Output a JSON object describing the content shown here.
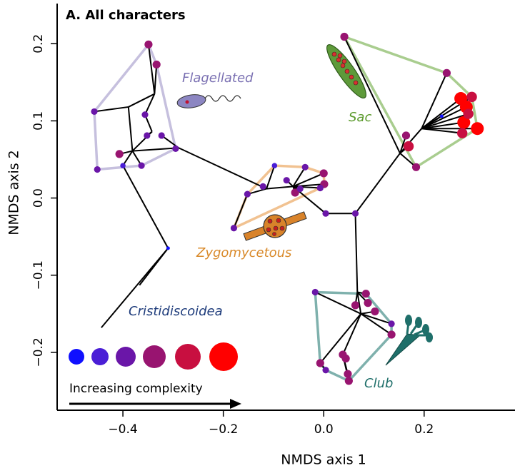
{
  "chart_data": {
    "type": "scatter",
    "title": "A. All characters",
    "x_label": "NMDS axis 1",
    "y_label": "NMDS axis 2",
    "xlim": [
      -0.531,
      0.381
    ],
    "ylim": [
      -0.275,
      0.252
    ],
    "xticks": [
      {
        "value": -0.4,
        "label": "−0.4"
      },
      {
        "value": -0.2,
        "label": "−0.2"
      },
      {
        "value": 0,
        "label": "0.0"
      },
      {
        "value": 0.2,
        "label": "0.2"
      }
    ],
    "yticks": [
      {
        "value": -0.2,
        "label": "−0.2"
      },
      {
        "value": -0.1,
        "label": "−0.1"
      },
      {
        "value": 0,
        "label": "0.0"
      },
      {
        "value": 0.1,
        "label": "0.1"
      },
      {
        "value": 0.2,
        "label": "0.2"
      }
    ],
    "x": [
      -0.349,
      -0.333,
      -0.457,
      -0.356,
      -0.451,
      -0.407,
      -0.363,
      -0.295,
      -0.323,
      -0.352,
      -0.4,
      -0.337,
      -0.389,
      -0.342,
      -0.381,
      -0.289,
      -0.31,
      -0.367,
      -0.443,
      -0.114,
      -0.098,
      -0.152,
      -0.121,
      -0.179,
      -0.057,
      -0.047,
      0.0,
      0.001,
      -0.007,
      -0.037,
      -0.074,
      -0.061,
      0.004,
      0.063,
      -0.017,
      0.067,
      0.084,
      0.088,
      0.063,
      0.102,
      0.135,
      0.135,
      -0.007,
      0.038,
      0.044,
      0.048,
      0.05,
      0.004,
      0.074,
      0.041,
      0.245,
      0.164,
      0.169,
      0.184,
      0.235,
      0.273,
      0.295,
      0.284,
      0.279,
      0.306,
      0.276,
      0.288,
      0.152,
      0.195
    ],
    "y": [
      0.199,
      0.173,
      0.112,
      0.108,
      0.037,
      0.057,
      0.042,
      0.064,
      0.081,
      0.081,
      0.042,
      0.135,
      0.118,
      0.086,
      0.061,
      0.065,
      -0.065,
      -0.113,
      -0.168,
      0.012,
      0.042,
      0.005,
      0.015,
      -0.039,
      0.007,
      0.012,
      0.032,
      0.018,
      0.013,
      0.04,
      0.023,
      0.015,
      -0.02,
      -0.02,
      -0.122,
      -0.122,
      -0.124,
      -0.136,
      -0.139,
      -0.147,
      -0.177,
      -0.163,
      -0.214,
      -0.203,
      -0.208,
      -0.228,
      -0.237,
      -0.223,
      -0.15,
      0.209,
      0.162,
      0.081,
      0.067,
      0.04,
      0.106,
      0.129,
      0.131,
      0.118,
      0.098,
      0.09,
      0.084,
      0.109,
      0.058,
      0.09
    ],
    "complexity": [
      4,
      4,
      3,
      3,
      3,
      4,
      3,
      3,
      3,
      3,
      2,
      null,
      null,
      null,
      null,
      null,
      1,
      null,
      null,
      null,
      2,
      3,
      3,
      3,
      4,
      3,
      4,
      4,
      3,
      3,
      3,
      null,
      3,
      3,
      3,
      null,
      4,
      4,
      4,
      4,
      4,
      3,
      4,
      4,
      4,
      4,
      4,
      3,
      null,
      4,
      4,
      4,
      5,
      4,
      1,
      6,
      5,
      6,
      6,
      6,
      5,
      5,
      null,
      null
    ],
    "complexity_colors": [
      "#1010ff",
      "#4a1ed6",
      "#6a16a8",
      "#981470",
      "#c80f40",
      "#ff0000"
    ],
    "edges": [
      [
        15,
        7
      ],
      [
        15,
        8
      ],
      [
        15,
        14
      ],
      [
        14,
        5
      ],
      [
        14,
        10
      ],
      [
        14,
        13
      ],
      [
        13,
        9
      ],
      [
        13,
        3
      ],
      [
        14,
        12
      ],
      [
        12,
        2
      ],
      [
        12,
        11
      ],
      [
        11,
        0
      ],
      [
        11,
        1
      ],
      [
        11,
        3
      ],
      [
        14,
        6
      ],
      [
        10,
        16
      ],
      [
        16,
        17
      ],
      [
        16,
        18
      ],
      [
        15,
        19
      ],
      [
        19,
        20
      ],
      [
        19,
        21
      ],
      [
        19,
        22
      ],
      [
        21,
        23
      ],
      [
        19,
        31
      ],
      [
        31,
        32
      ],
      [
        31,
        24
      ],
      [
        31,
        25
      ],
      [
        31,
        26
      ],
      [
        31,
        27
      ],
      [
        31,
        28
      ],
      [
        31,
        29
      ],
      [
        31,
        30
      ],
      [
        32,
        33
      ],
      [
        33,
        62
      ],
      [
        62,
        51
      ],
      [
        62,
        52
      ],
      [
        62,
        53
      ],
      [
        62,
        49
      ],
      [
        62,
        63
      ],
      [
        63,
        54
      ],
      [
        63,
        55
      ],
      [
        63,
        56
      ],
      [
        63,
        57
      ],
      [
        63,
        58
      ],
      [
        63,
        59
      ],
      [
        63,
        60
      ],
      [
        63,
        61
      ],
      [
        63,
        50
      ],
      [
        33,
        35
      ],
      [
        35,
        36
      ],
      [
        35,
        37
      ],
      [
        35,
        38
      ],
      [
        35,
        48
      ],
      [
        48,
        39
      ],
      [
        48,
        40
      ],
      [
        48,
        41
      ],
      [
        48,
        34
      ],
      [
        48,
        42
      ],
      [
        42,
        47
      ],
      [
        48,
        43
      ],
      [
        43,
        44
      ],
      [
        43,
        45
      ],
      [
        43,
        46
      ]
    ],
    "groups": [
      {
        "name": "Flagellated",
        "hull_color": "#c6c0de",
        "label_color": "#7a70b2",
        "members": [
          0,
          1,
          2,
          3,
          4,
          5,
          6,
          7,
          8,
          9,
          10
        ]
      },
      {
        "name": "Sac",
        "hull_color": "#a9cd8f",
        "label_color": "#5b9a2c",
        "members": [
          49,
          50,
          51,
          52,
          53,
          54,
          55,
          56,
          57,
          58,
          59,
          60,
          61
        ]
      },
      {
        "name": "Zygomycetous",
        "hull_color": "#f1c291",
        "label_color": "#d98a2b",
        "members": [
          20,
          21,
          22,
          23,
          24,
          25,
          26,
          27,
          28,
          29,
          30
        ]
      },
      {
        "name": "Club",
        "hull_color": "#7fb1ad",
        "label_color": "#1f6f6a",
        "members": [
          34,
          36,
          37,
          38,
          39,
          40,
          41,
          42,
          43,
          44,
          45,
          46,
          47
        ]
      },
      {
        "name": "Cristidiscoidea",
        "label_color": "#1c3a7a",
        "members": [
          16
        ]
      }
    ],
    "legend_label": "Increasing complexity"
  }
}
